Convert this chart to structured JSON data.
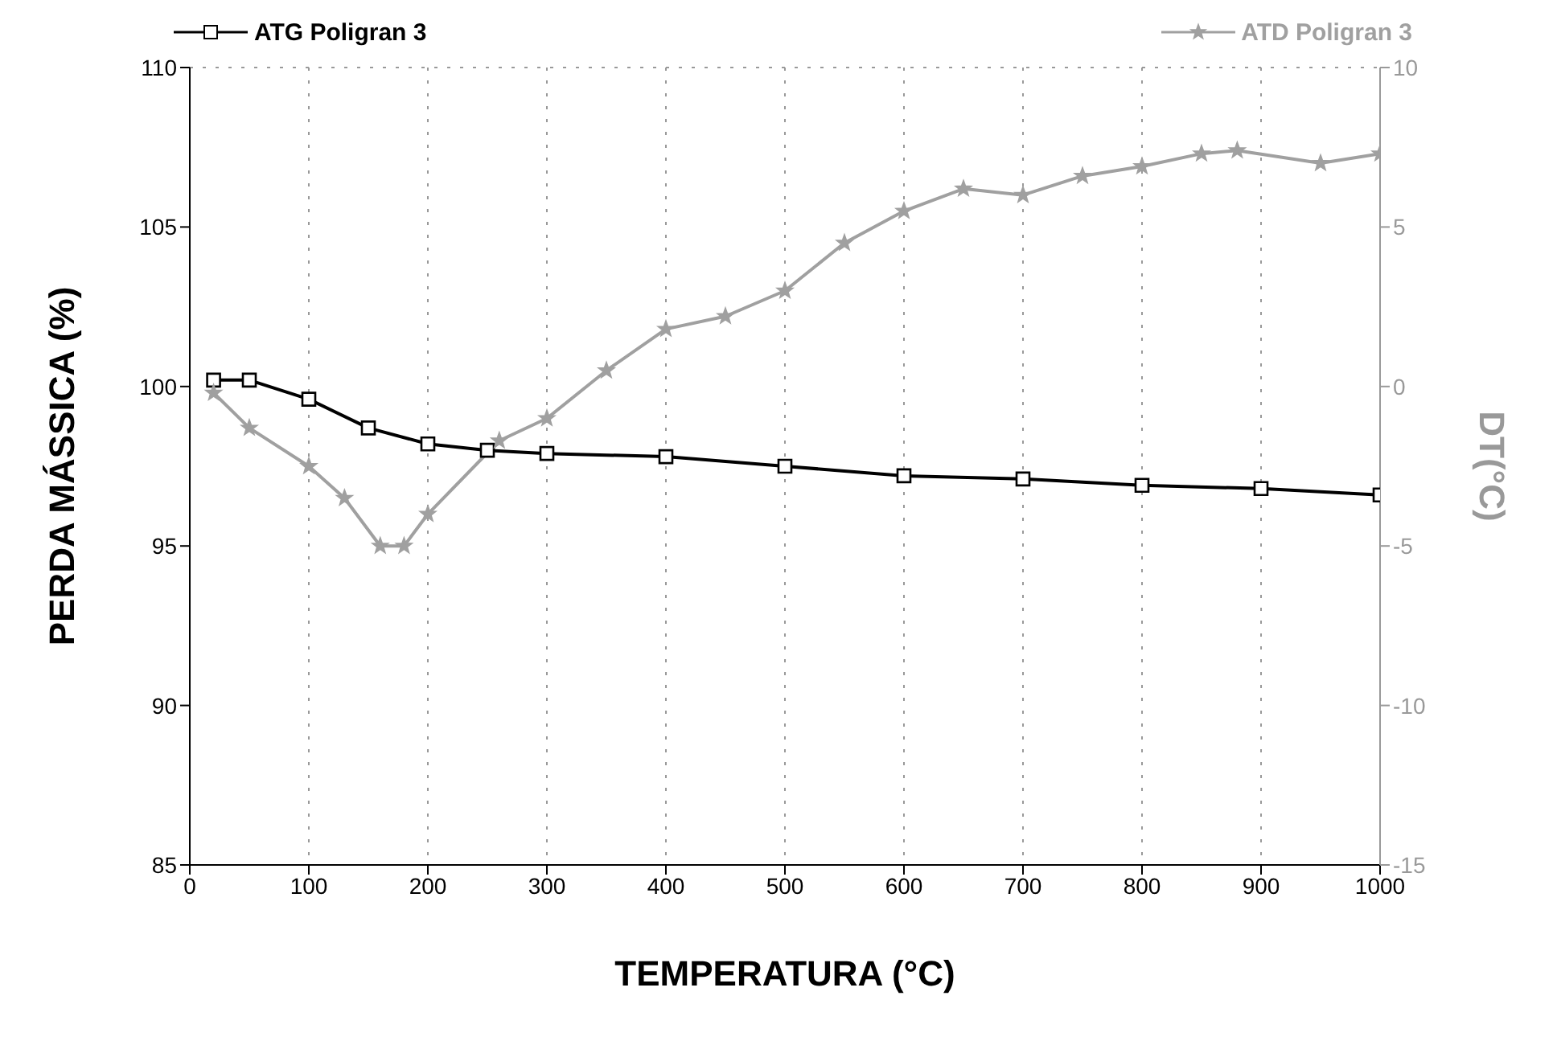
{
  "chart_data": {
    "type": "line",
    "xlabel": "TEMPERATURA (°C)",
    "ylabel": "PERDA MÁSSICA (%)",
    "y2label": "DT(°C)",
    "xlim": [
      0,
      1000
    ],
    "xticks": [
      0,
      100,
      200,
      300,
      400,
      500,
      600,
      700,
      800,
      900,
      1000
    ],
    "ylim": [
      85,
      110
    ],
    "yticks": [
      85,
      90,
      95,
      100,
      105,
      110
    ],
    "y2lim": [
      -15,
      10
    ],
    "y2ticks": [
      -15,
      -10,
      -5,
      0,
      5,
      10
    ],
    "grid": true,
    "legend": "top",
    "line_style": "solid",
    "series": [
      {
        "name": "ATG Poligran 3",
        "color": "#000000",
        "marker": "square",
        "x": [
          20,
          50,
          100,
          150,
          200,
          250,
          300,
          400,
          500,
          600,
          700,
          800,
          900,
          1000
        ],
        "values": [
          100.2,
          100.2,
          99.6,
          98.7,
          98.2,
          98.0,
          97.9,
          97.8,
          97.5,
          97.2,
          97.1,
          96.9,
          96.8,
          96.6
        ]
      },
      {
        "name": "ATD Poligran 3",
        "color": "#a0a0a0",
        "marker": "star",
        "axis": "y2",
        "x": [
          20,
          50,
          100,
          130,
          160,
          180,
          200,
          260,
          300,
          350,
          400,
          450,
          500,
          550,
          600,
          650,
          700,
          750,
          800,
          850,
          880,
          950,
          1000
        ],
        "values": [
          -0.2,
          -1.3,
          -2.5,
          -3.5,
          -5.0,
          -5.0,
          -4.0,
          -1.7,
          -1.0,
          0.5,
          1.8,
          2.2,
          3.0,
          4.5,
          5.5,
          6.2,
          6.0,
          6.6,
          6.9,
          7.3,
          7.4,
          7.0,
          7.3
        ]
      }
    ]
  }
}
